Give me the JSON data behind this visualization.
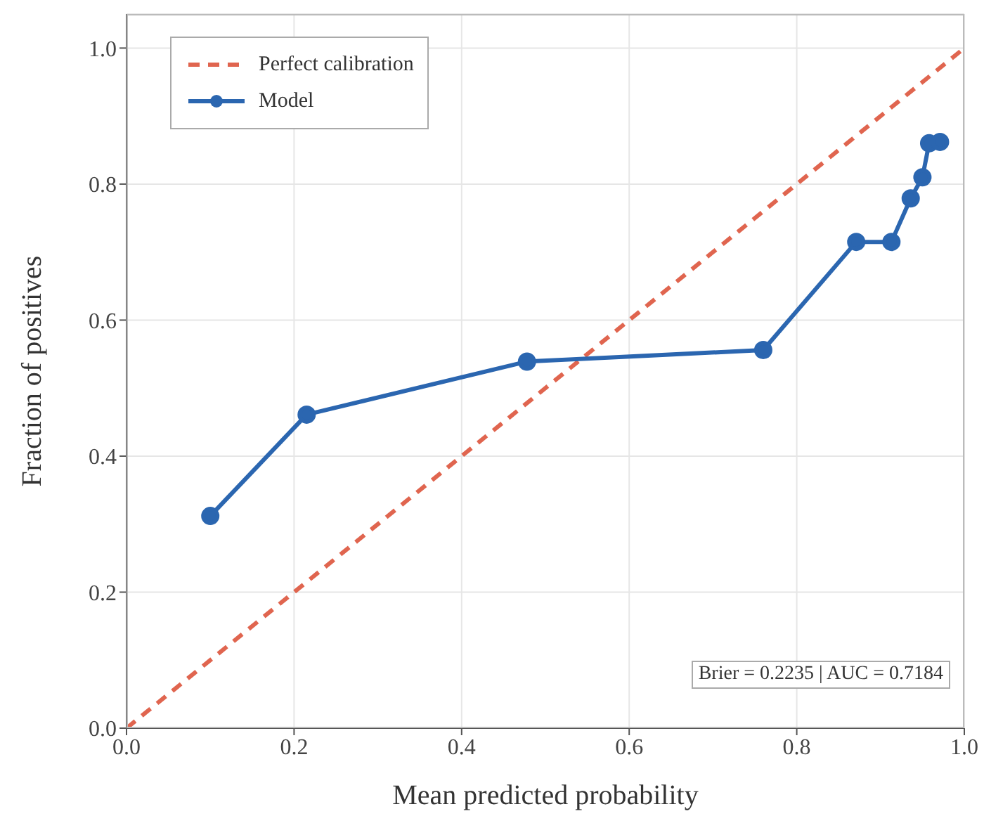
{
  "chart_data": {
    "type": "line",
    "xlabel": "Mean predicted probability",
    "ylabel": "Fraction of positives",
    "series": [
      {
        "name": "Perfect calibration",
        "color": "#e0654f",
        "x": [
          0,
          1
        ],
        "values": [
          0,
          1
        ],
        "line_style": "dashed",
        "marker": "none"
      },
      {
        "name": "Model",
        "color": "#2b66b0",
        "x": [
          0.1,
          0.215,
          0.478,
          0.76,
          0.871,
          0.913,
          0.936,
          0.95,
          0.958,
          0.971
        ],
        "values": [
          0.312,
          0.461,
          0.539,
          0.556,
          0.715,
          0.715,
          0.779,
          0.81,
          0.86,
          0.862
        ],
        "line_style": "solid",
        "marker": "circle"
      }
    ],
    "xlim": [
      0,
      1
    ],
    "ylim": [
      0,
      1.05
    ],
    "xticks": [
      {
        "value": 0,
        "label": "0.0"
      },
      {
        "value": 0.2,
        "label": "0.2"
      },
      {
        "value": 0.4,
        "label": "0.4"
      },
      {
        "value": 0.6,
        "label": "0.6"
      },
      {
        "value": 0.8,
        "label": "0.8"
      },
      {
        "value": 1,
        "label": "1.0"
      }
    ],
    "yticks": [
      {
        "value": 0,
        "label": "0.0"
      },
      {
        "value": 0.2,
        "label": "0.2"
      },
      {
        "value": 0.4,
        "label": "0.4"
      },
      {
        "value": 0.6,
        "label": "0.6"
      },
      {
        "value": 0.8,
        "label": "0.8"
      },
      {
        "value": 1,
        "label": "1.0"
      }
    ],
    "grid": true,
    "legend": "top left",
    "annotations": [
      "Brier = 0.2235 | AUC = 0.7184"
    ]
  }
}
